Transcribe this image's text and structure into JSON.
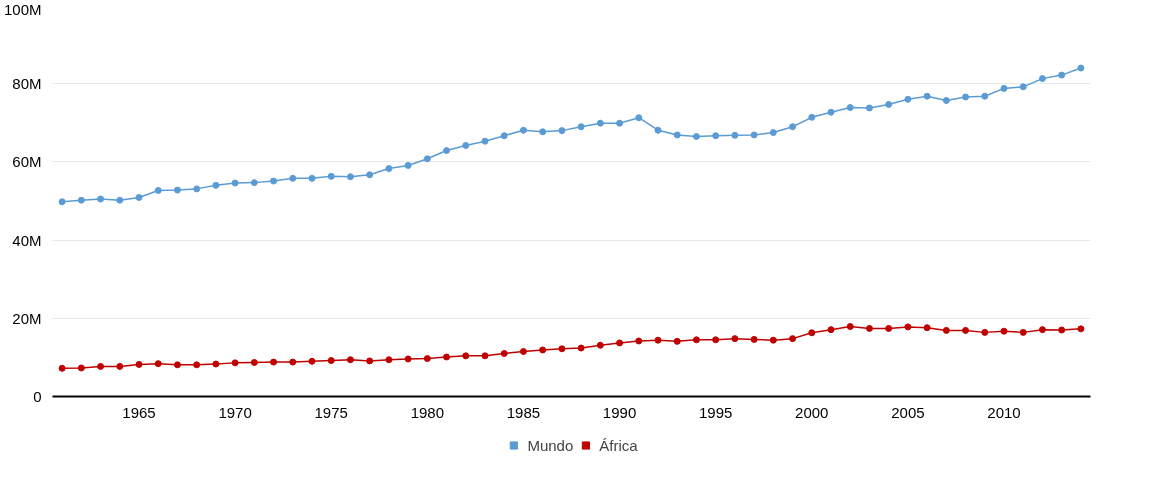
{
  "chart_data": {
    "type": "line",
    "x": [
      1961,
      1962,
      1963,
      1964,
      1965,
      1966,
      1967,
      1968,
      1969,
      1970,
      1971,
      1972,
      1973,
      1974,
      1975,
      1976,
      1977,
      1978,
      1979,
      1980,
      1981,
      1982,
      1983,
      1984,
      1985,
      1986,
      1987,
      1988,
      1989,
      1990,
      1991,
      1992,
      1993,
      1994,
      1995,
      1996,
      1997,
      1998,
      1999,
      2000,
      2001,
      2002,
      2003,
      2004,
      2005,
      2006,
      2007,
      2008,
      2009,
      2010,
      2011,
      2012,
      2013,
      2014
    ],
    "series": [
      {
        "name": "Mundo",
        "color": "#5b9bd5",
        "values": [
          49.8,
          50.2,
          50.5,
          50.2,
          50.9,
          52.7,
          52.8,
          53.1,
          54.0,
          54.6,
          54.7,
          55.1,
          55.8,
          55.8,
          56.3,
          56.2,
          56.7,
          58.3,
          59.1,
          60.8,
          62.9,
          64.2,
          65.3,
          66.7,
          68.1,
          67.7,
          68.0,
          69.0,
          69.9,
          69.9,
          71.3,
          68.1,
          66.9,
          66.5,
          66.7,
          66.8,
          66.9,
          67.5,
          69.0,
          71.4,
          72.7,
          73.9,
          73.8,
          74.7,
          76.0,
          76.8,
          75.7,
          76.6,
          76.8,
          78.8,
          79.2,
          81.3,
          82.2,
          84.0
        ]
      },
      {
        "name": "África",
        "color": "#c00000",
        "values": [
          7.2,
          7.3,
          7.7,
          7.7,
          8.2,
          8.4,
          8.1,
          8.1,
          8.3,
          8.6,
          8.7,
          8.8,
          8.8,
          9.0,
          9.2,
          9.4,
          9.1,
          9.4,
          9.6,
          9.7,
          10.1,
          10.4,
          10.4,
          11.0,
          11.5,
          11.9,
          12.2,
          12.4,
          13.1,
          13.7,
          14.2,
          14.4,
          14.1,
          14.5,
          14.5,
          14.8,
          14.6,
          14.4,
          14.8,
          16.3,
          17.1,
          17.9,
          17.4,
          17.4,
          17.8,
          17.6,
          16.9,
          16.9,
          16.4,
          16.7,
          16.4,
          17.1,
          17.0,
          17.3
        ]
      }
    ],
    "xlim": [
      1960.5,
      2014.5
    ],
    "xticks": [
      1965,
      1970,
      1975,
      1980,
      1985,
      1990,
      1995,
      2000,
      2005,
      2010
    ],
    "ylim": [
      0,
      100
    ],
    "yticks": [
      0,
      {
        "value": 20,
        "label": "20M"
      },
      {
        "value": 40,
        "label": "40M"
      },
      {
        "value": 60,
        "label": "60M"
      },
      {
        "value": 80,
        "label": "80M"
      },
      {
        "value": 100,
        "label": "100M"
      }
    ],
    "grid": "y",
    "legend": "bottom",
    "marker": "circle",
    "line_style": "solid"
  }
}
